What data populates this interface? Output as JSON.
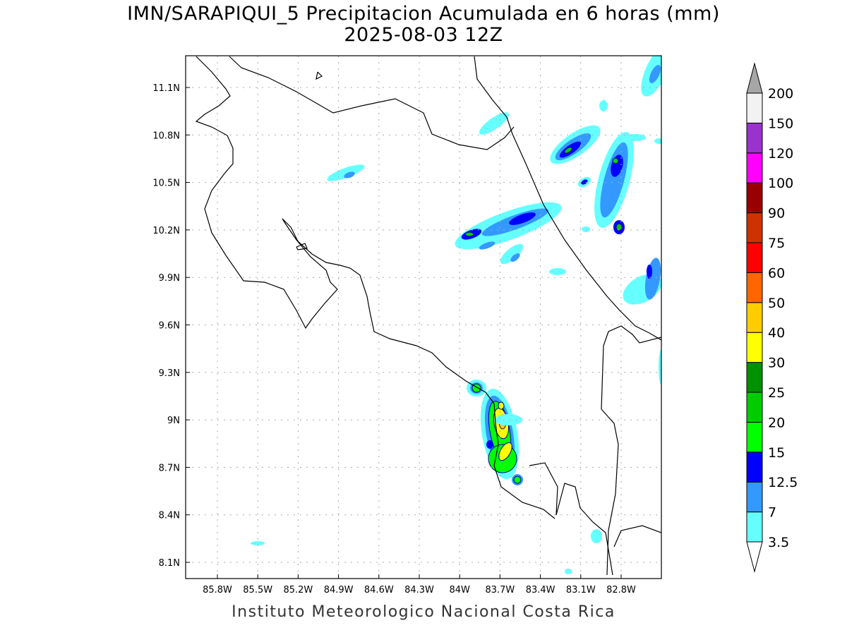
{
  "title": "IMN/SARAPIQUI_5 Precipitacion Acumulada en 6 horas (mm)",
  "subtitle": "2025-08-03 12Z",
  "footer": "Instituto Meteorologico Nacional Costa Rica",
  "map": {
    "lon_ticks": [
      "85.8W",
      "85.5W",
      "85.2W",
      "84.9W",
      "84.6W",
      "84.3W",
      "84W",
      "83.7W",
      "83.4W",
      "83.1W",
      "82.8W"
    ],
    "lat_ticks": [
      "11.1N",
      "10.8N",
      "10.5N",
      "10.2N",
      "9.9N",
      "9.6N",
      "9.3N",
      "9N",
      "8.7N",
      "8.4N",
      "8.1N"
    ],
    "grid": true
  },
  "colorbar": {
    "levels": [
      "3.5",
      "7",
      "12.5",
      "15",
      "20",
      "25",
      "30",
      "40",
      "50",
      "60",
      "75",
      "90",
      "100",
      "120",
      "150",
      "200"
    ],
    "colors": [
      "#66ffff",
      "#3399ff",
      "#0000ff",
      "#00ff00",
      "#00cc00",
      "#009000",
      "#ffff00",
      "#ffcc00",
      "#ff6600",
      "#ff0000",
      "#cc3300",
      "#990000",
      "#ff00ff",
      "#9933cc",
      "#f2f2f2"
    ],
    "over_color": "#a6a6a6",
    "under_color": "#ffffff"
  }
}
